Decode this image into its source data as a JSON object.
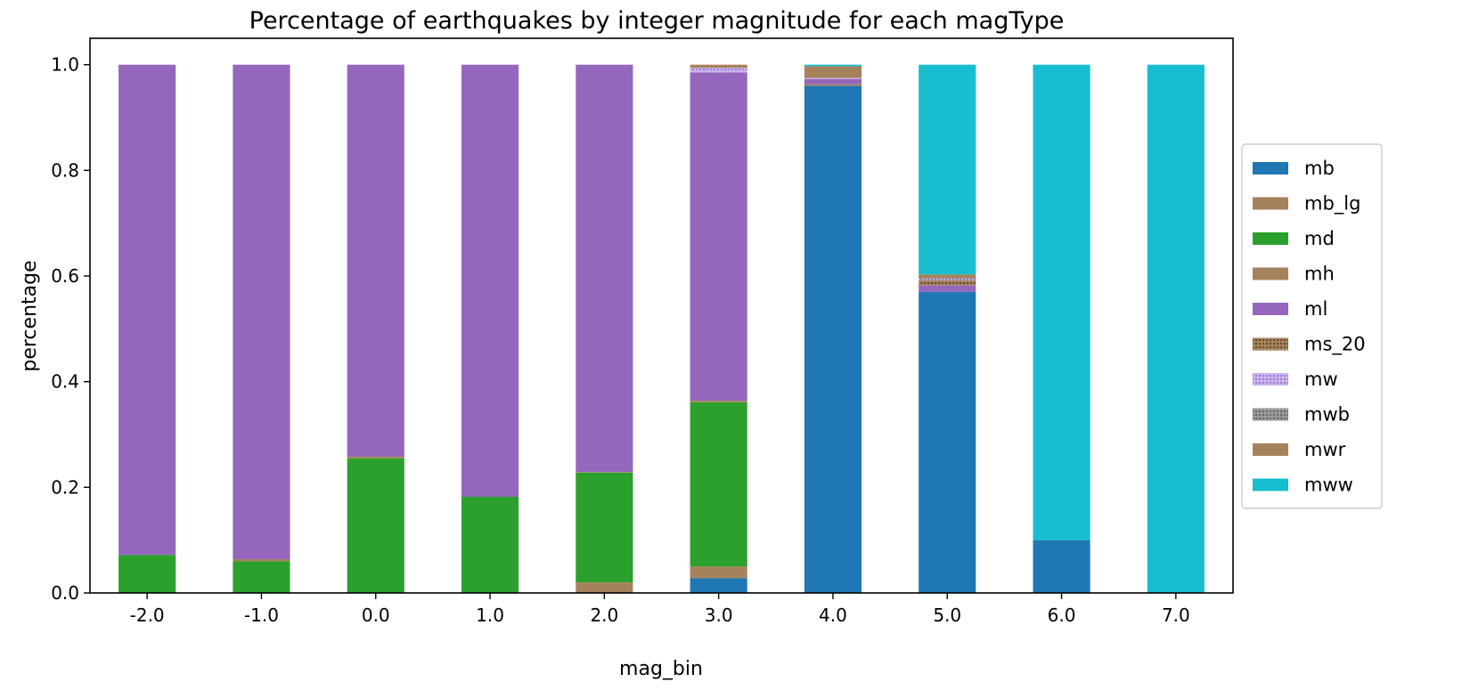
{
  "chart_data": {
    "type": "bar",
    "stacked": true,
    "title": "Percentage of earthquakes by integer magnitude for each magType",
    "xlabel": "mag_bin",
    "ylabel": "percentage",
    "ylim": [
      0,
      1.05
    ],
    "yticks": [
      "0.0",
      "0.2",
      "0.4",
      "0.6",
      "0.8",
      "1.0"
    ],
    "categories": [
      "-2.0",
      "-1.0",
      "0.0",
      "1.0",
      "2.0",
      "3.0",
      "4.0",
      "5.0",
      "6.0",
      "7.0"
    ],
    "legend_position": "center-right outside",
    "grid": false,
    "series": [
      {
        "name": "mb",
        "color": "#1f77b4",
        "pattern": "solid",
        "values": [
          0,
          0,
          0,
          0,
          0,
          0.028,
          0.96,
          0.57,
          0.1,
          0
        ]
      },
      {
        "name": "mb_lg",
        "color": "#a6825c",
        "pattern": "solid",
        "values": [
          0,
          0,
          0,
          0,
          0.02,
          0.022,
          0.003,
          0,
          0,
          0
        ]
      },
      {
        "name": "md",
        "color": "#2ca02c",
        "pattern": "solid",
        "values": [
          0.072,
          0.06,
          0.255,
          0.182,
          0.208,
          0.311,
          0,
          0,
          0,
          0
        ]
      },
      {
        "name": "mh",
        "color": "#a6825c",
        "pattern": "solid",
        "values": [
          0,
          0.004,
          0.003,
          0,
          0.001,
          0.003,
          0,
          0,
          0,
          0
        ]
      },
      {
        "name": "ml",
        "color": "#9467bd",
        "pattern": "solid",
        "values": [
          0.928,
          0.936,
          0.742,
          0.818,
          0.771,
          0.621,
          0.01,
          0.012,
          0,
          0
        ]
      },
      {
        "name": "ms_20",
        "color": "#8c6a3a",
        "pattern": "dots",
        "values": [
          0,
          0,
          0,
          0,
          0,
          0,
          0,
          0.01,
          0,
          0
        ]
      },
      {
        "name": "mw",
        "color": "#b69ce0",
        "pattern": "dots",
        "values": [
          0,
          0,
          0,
          0,
          0,
          0.009,
          0.002,
          0.002,
          0,
          0
        ]
      },
      {
        "name": "mwb",
        "color": "#7f7f7f",
        "pattern": "dots",
        "values": [
          0,
          0,
          0,
          0,
          0,
          0,
          0,
          0.002,
          0,
          0
        ]
      },
      {
        "name": "mwr",
        "color": "#a6825c",
        "pattern": "solid",
        "values": [
          0,
          0,
          0,
          0,
          0,
          0.006,
          0.022,
          0.007,
          0,
          0
        ]
      },
      {
        "name": "mww",
        "color": "#17becf",
        "pattern": "solid",
        "values": [
          0,
          0,
          0,
          0,
          0,
          0,
          0.003,
          0.397,
          0.9,
          1.0
        ]
      }
    ]
  }
}
